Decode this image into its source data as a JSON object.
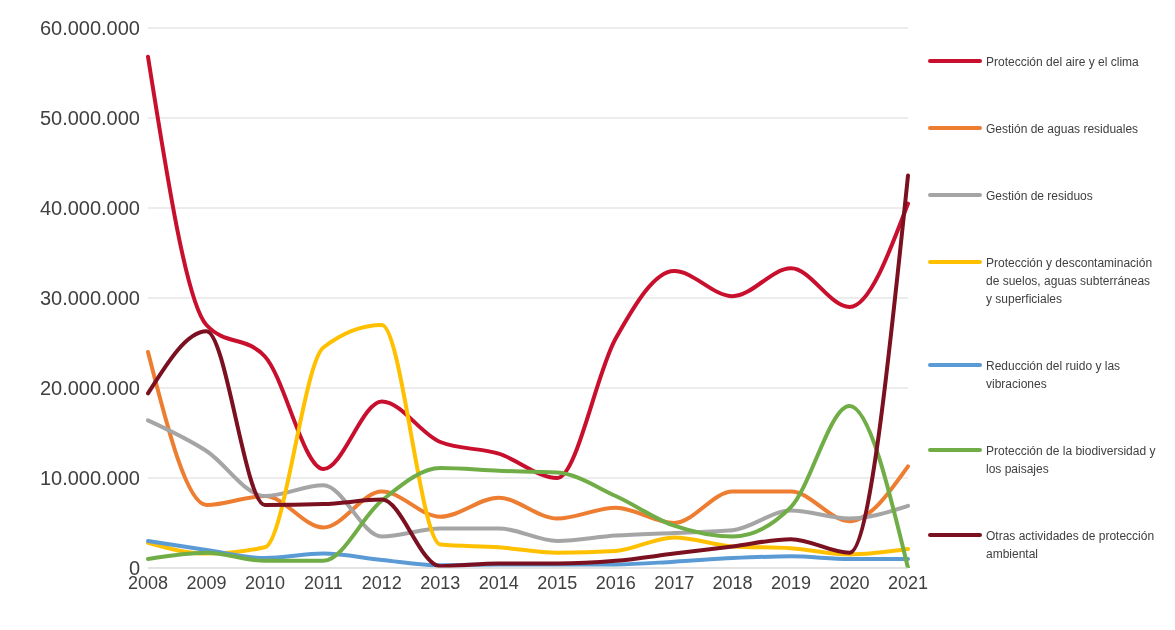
{
  "chart_data": {
    "type": "line",
    "categories": [
      "2008",
      "2009",
      "2010",
      "2011",
      "2012",
      "2013",
      "2014",
      "2015",
      "2016",
      "2017",
      "2018",
      "2019",
      "2020",
      "2021"
    ],
    "series": [
      {
        "name": "Protección del aire y el clima",
        "color": "#c8102e",
        "values": [
          56800000,
          27000000,
          23500000,
          11000000,
          18500000,
          14000000,
          12700000,
          10000000,
          25500000,
          33000000,
          30200000,
          33300000,
          29000000,
          40500000
        ]
      },
      {
        "name": "Gestión de aguas residuales",
        "color": "#ed7d31",
        "values": [
          24000000,
          7000000,
          8000000,
          4500000,
          8500000,
          5700000,
          7800000,
          5500000,
          6700000,
          5000000,
          8500000,
          8500000,
          5200000,
          11300000
        ]
      },
      {
        "name": "Gestión de residuos",
        "color": "#a5a5a5",
        "values": [
          16400000,
          13000000,
          8000000,
          9200000,
          3500000,
          4400000,
          4400000,
          3000000,
          3600000,
          3900000,
          4200000,
          6400000,
          5500000,
          6900000
        ]
      },
      {
        "name": "Protección y descontaminación de suelos, aguas subterráneas y superficiales",
        "color": "#ffc000",
        "values": [
          2800000,
          1600000,
          2300000,
          24500000,
          27000000,
          2600000,
          2300000,
          1700000,
          1900000,
          3400000,
          2400000,
          2200000,
          1500000,
          2100000
        ]
      },
      {
        "name": "Reducción del ruido y las vibraciones",
        "color": "#5b9bd5",
        "values": [
          3000000,
          2000000,
          1100000,
          1600000,
          900000,
          300000,
          400000,
          400000,
          400000,
          700000,
          1100000,
          1300000,
          1000000,
          1000000
        ]
      },
      {
        "name": "Protección de la biodiversidad y los paisajes",
        "color": "#70ad47",
        "values": [
          1000000,
          1700000,
          800000,
          800000,
          7500000,
          11100000,
          10800000,
          10600000,
          8000000,
          4700000,
          3500000,
          6800000,
          18000000,
          0
        ]
      },
      {
        "name": "Otras actividades de protección ambiental",
        "color": "#7b1020",
        "values": [
          19400000,
          26300000,
          7000000,
          7100000,
          7600000,
          200000,
          500000,
          500000,
          800000,
          1600000,
          2400000,
          3200000,
          1700000,
          43600000
        ]
      }
    ],
    "ylim": [
      0,
      60000000
    ],
    "yticks": [
      {
        "value": 0,
        "label": "0"
      },
      {
        "value": 10000000,
        "label": "10.000.000"
      },
      {
        "value": 20000000,
        "label": "20.000.000"
      },
      {
        "value": 30000000,
        "label": "30.000.000"
      },
      {
        "value": 40000000,
        "label": "40.000.000"
      },
      {
        "value": 50000000,
        "label": "50.000.000"
      },
      {
        "value": 60000000,
        "label": "60.000.000"
      }
    ],
    "grid": "y",
    "legend": "right",
    "marker": "none",
    "line_style": "solid"
  }
}
